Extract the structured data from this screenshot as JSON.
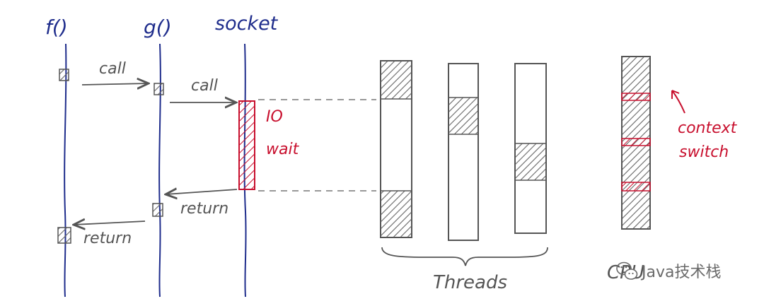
{
  "lifelines": {
    "f": "f()",
    "g": "g()",
    "socket": "socket"
  },
  "messages": {
    "call_1": "call",
    "call_2": "call",
    "return_1": "return",
    "return_2": "return"
  },
  "io_wait": {
    "line1": "IO",
    "line2": "wait"
  },
  "threads_label": "Threads",
  "cpu_label": "CPU",
  "context_switch": {
    "line1": "context",
    "line2": "switch"
  },
  "watermark": "Java技术栈",
  "colors": {
    "lifeline": "#1f2d8c",
    "ink": "#555555",
    "io_red": "#c8102e"
  }
}
